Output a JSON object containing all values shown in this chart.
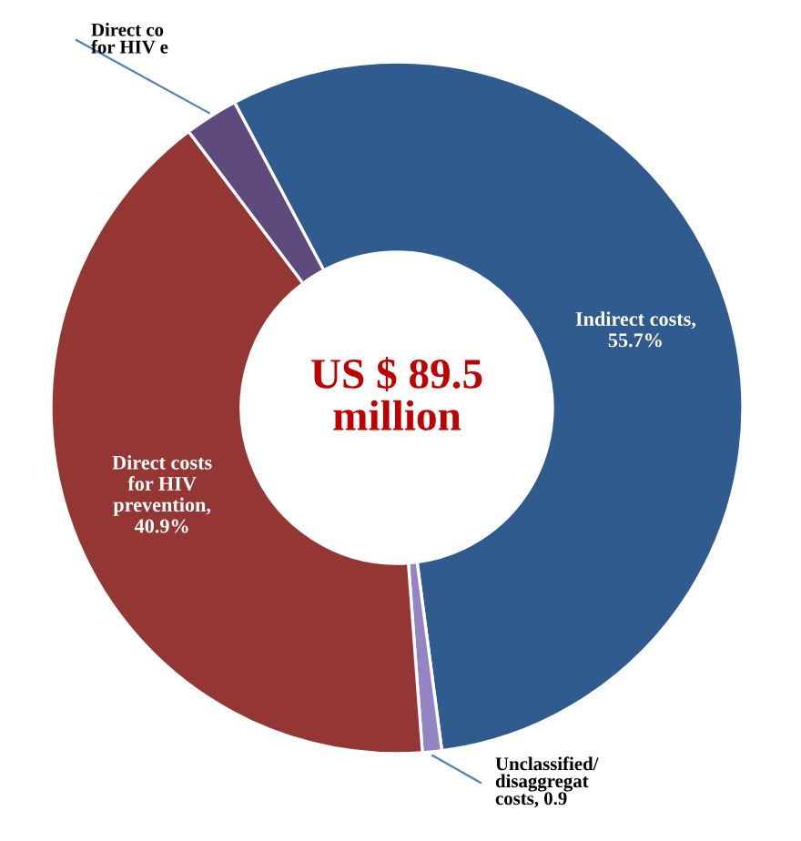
{
  "chart_data": {
    "type": "donut",
    "categories": [
      "Indirect costs,\n55.7%",
      "Unclassified/\ndisaggregat\ncosts, 0.9",
      "Direct costs\nfor HIV\nprevention,\n40.9%",
      "Direct co\nfor HIV e"
    ],
    "values": [
      55.7,
      0.9,
      40.9,
      2.5
    ],
    "colors": [
      "#2f5b8f",
      "#9484c4",
      "#943634",
      "#5e4a7d"
    ],
    "annotations": [
      "US $ 89.5\nmillion"
    ]
  }
}
